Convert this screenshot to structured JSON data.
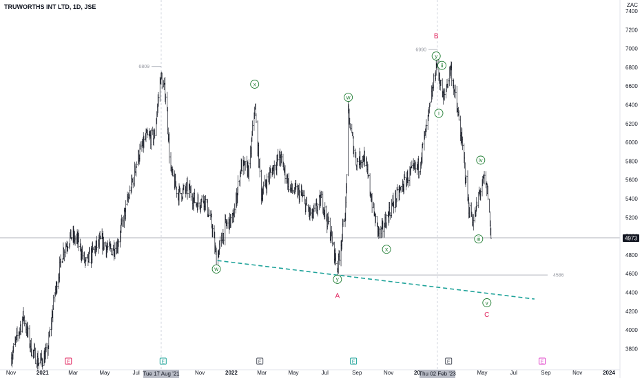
{
  "header": {
    "symbol_title": "TRUWORTHS INT LTD, 1D, JSE"
  },
  "chart_data": {
    "type": "bar",
    "title": "TRUWORTHS INT LTD, 1D, JSE",
    "currency": "ZAC",
    "ylim": [
      3600,
      7400
    ],
    "y_ticks": [
      "7400",
      "7200",
      "7000",
      "6800",
      "6600",
      "6400",
      "6200",
      "6000",
      "5800",
      "5600",
      "5400",
      "5200",
      "5000",
      "4800",
      "4600",
      "4400",
      "4200",
      "4000",
      "3800"
    ],
    "x_ticks": [
      "Nov",
      "2021",
      "Mar",
      "May",
      "Jul",
      "Sep",
      "Nov",
      "2022",
      "Mar",
      "May",
      "Jul",
      "Sep",
      "Nov",
      "2023",
      "Mar",
      "May",
      "Jul",
      "Sep",
      "Nov",
      "2024"
    ],
    "highlighted_dates": [
      "Tue 17 Aug '21",
      "Thu 02 Feb '23"
    ],
    "last_price": "4973",
    "level_labels": [
      "6809",
      "6990",
      "4586"
    ],
    "price_path": [
      [
        "2020-11-01",
        3700
      ],
      [
        "2020-11-25",
        4150
      ],
      [
        "2020-12-10",
        3800
      ],
      [
        "2020-12-25",
        3650
      ],
      [
        "2021-01-10",
        3750
      ],
      [
        "2021-01-25",
        4400
      ],
      [
        "2021-02-10",
        4850
      ],
      [
        "2021-02-25",
        5000
      ],
      [
        "2021-03-10",
        4950
      ],
      [
        "2021-03-25",
        4700
      ],
      [
        "2021-04-10",
        4850
      ],
      [
        "2021-04-25",
        4950
      ],
      [
        "2021-05-10",
        4850
      ],
      [
        "2021-05-25",
        4900
      ],
      [
        "2021-06-05",
        5150
      ],
      [
        "2021-06-20",
        5500
      ],
      [
        "2021-07-05",
        5850
      ],
      [
        "2021-07-20",
        6050
      ],
      [
        "2021-08-05",
        6050
      ],
      [
        "2021-08-17",
        6700
      ],
      [
        "2021-08-28",
        6500
      ],
      [
        "2021-09-05",
        5700
      ],
      [
        "2021-09-20",
        5450
      ],
      [
        "2021-10-10",
        5500
      ],
      [
        "2021-10-25",
        5350
      ],
      [
        "2021-11-10",
        5400
      ],
      [
        "2021-11-25",
        5100
      ],
      [
        "2021-12-03",
        4750
      ],
      [
        "2021-12-20",
        5100
      ],
      [
        "2022-01-05",
        5200
      ],
      [
        "2022-01-20",
        5750
      ],
      [
        "2022-02-05",
        5700
      ],
      [
        "2022-02-15",
        6400
      ],
      [
        "2022-02-28",
        5450
      ],
      [
        "2022-03-20",
        5700
      ],
      [
        "2022-04-05",
        5850
      ],
      [
        "2022-04-25",
        5500
      ],
      [
        "2022-05-15",
        5450
      ],
      [
        "2022-06-05",
        5200
      ],
      [
        "2022-06-25",
        5400
      ],
      [
        "2022-07-15",
        4950
      ],
      [
        "2022-07-25",
        4650
      ],
      [
        "2022-08-10",
        5300
      ],
      [
        "2022-08-15",
        6300
      ],
      [
        "2022-08-30",
        5800
      ],
      [
        "2022-09-15",
        5850
      ],
      [
        "2022-10-05",
        5200
      ],
      [
        "2022-10-15",
        5000
      ],
      [
        "2022-11-05",
        5300
      ],
      [
        "2022-11-20",
        5450
      ],
      [
        "2022-12-10",
        5650
      ],
      [
        "2022-12-30",
        5750
      ],
      [
        "2023-01-15",
        6200
      ],
      [
        "2023-02-02",
        6850
      ],
      [
        "2023-02-15",
        6450
      ],
      [
        "2023-03-01",
        6800
      ],
      [
        "2023-03-15",
        6300
      ],
      [
        "2023-03-25",
        5900
      ],
      [
        "2023-04-05",
        5300
      ],
      [
        "2023-04-15",
        5150
      ],
      [
        "2023-04-25",
        5450
      ],
      [
        "2023-05-05",
        5600
      ],
      [
        "2023-05-12",
        5450
      ],
      [
        "2023-05-18",
        4980
      ]
    ],
    "trend_line": [
      [
        "2021-12-05",
        4740
      ],
      [
        "2023-08-10",
        4330
      ]
    ],
    "waves": [
      {
        "label": "w",
        "date": "2021-12-03",
        "price": 4650
      },
      {
        "label": "x",
        "date": "2022-02-15",
        "price": 6620
      },
      {
        "label": "y",
        "date": "2022-07-25",
        "price": 4540
      },
      {
        "label": "w",
        "date": "2022-08-15",
        "price": 6480
      },
      {
        "label": "x",
        "date": "2022-10-28",
        "price": 4860
      },
      {
        "label": "y",
        "date": "2023-02-01",
        "price": 6920
      },
      {
        "label": "i",
        "date": "2023-02-06",
        "price": 6310
      },
      {
        "label": "ii",
        "date": "2023-02-12",
        "price": 6820
      },
      {
        "label": "iii",
        "date": "2023-04-24",
        "price": 4970
      },
      {
        "label": "iv",
        "date": "2023-04-28",
        "price": 5810
      },
      {
        "label": "v",
        "date": "2023-05-10",
        "price": 4290
      }
    ],
    "wave_degree_labels": [
      {
        "label": "A",
        "date": "2022-07-25",
        "price": 4370
      },
      {
        "label": "B",
        "date": "2023-02-01",
        "price": 7140
      },
      {
        "label": "C",
        "date": "2023-05-10",
        "price": 4170
      }
    ],
    "event_markers": [
      {
        "kind": "E",
        "date": "2021-02-20",
        "color": "#e0245e"
      },
      {
        "kind": "E",
        "date": "2021-08-22",
        "color": "#1fa39a"
      },
      {
        "kind": "E",
        "date": "2022-02-25",
        "color": "#4a4e5a"
      },
      {
        "kind": "E",
        "date": "2022-08-25",
        "color": "#1fa39a"
      },
      {
        "kind": "E",
        "date": "2023-02-25",
        "color": "#4a4e5a"
      },
      {
        "kind": "E",
        "date": "2023-08-25",
        "color": "#e040c8"
      }
    ],
    "colors": {
      "bars": "#131722",
      "trend_line": "#1fa39a",
      "wave": "#1b7a2e",
      "abc": "#e0245e",
      "level": "#b2b5be"
    }
  }
}
